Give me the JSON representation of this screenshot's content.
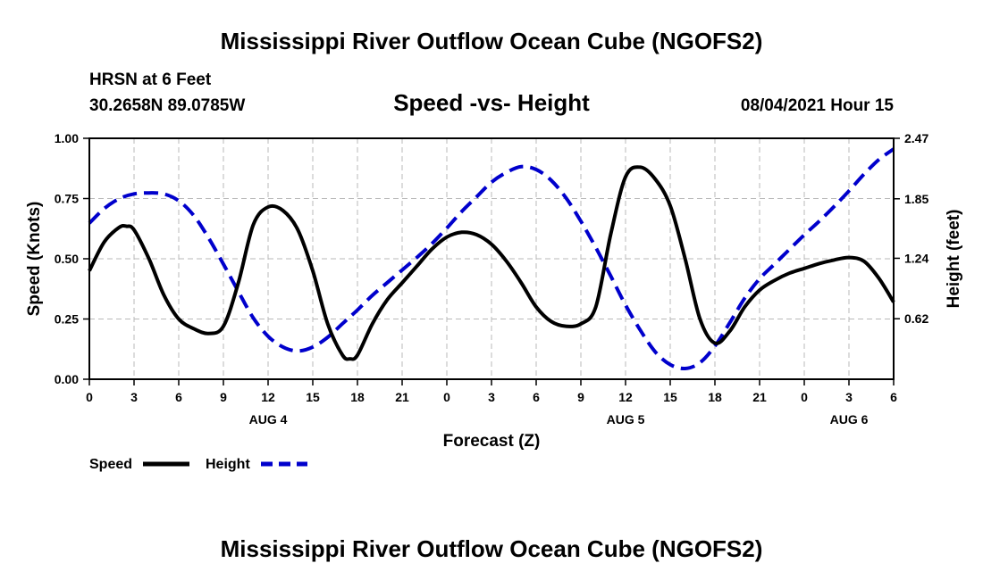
{
  "chart_data": {
    "type": "line",
    "title": "Mississippi River Outflow Ocean Cube (NGOFS2)",
    "footer_title": "Mississippi River Outflow Ocean Cube (NGOFS2)",
    "station": "HRSN at 6 Feet",
    "location": "30.2658N  89.0785W",
    "subtitle": "Speed -vs- Height",
    "timestamp": "08/04/2021 Hour 15",
    "xlabel": "Forecast (Z)",
    "ylabel_left": "Speed (Knots)",
    "ylabel_right": "Height (feet)",
    "x_range_hours": [
      0,
      54
    ],
    "ylim_left": [
      0,
      1
    ],
    "ylim_right": [
      0,
      2.47
    ],
    "x_tick_labels": [
      "0",
      "3",
      "6",
      "9",
      "12",
      "15",
      "18",
      "21",
      "0",
      "3",
      "6",
      "9",
      "12",
      "15",
      "18",
      "21",
      "0",
      "3",
      "6"
    ],
    "date_labels": [
      {
        "label": "AUG 4",
        "hour": 12
      },
      {
        "label": "AUG 5",
        "hour": 36
      },
      {
        "label": "AUG 6",
        "hour": 51
      }
    ],
    "y_left_ticks": [
      "0.00",
      "0.25",
      "0.50",
      "0.75",
      "1.00"
    ],
    "y_left_tick_values": [
      0,
      0.25,
      0.5,
      0.75,
      1.0
    ],
    "y_right_ticks": [
      "0.62",
      "1.24",
      "1.85",
      "2.47"
    ],
    "y_right_tick_values": [
      0.62,
      1.24,
      1.85,
      2.47
    ],
    "grid": true,
    "legend_position": "bottom-left",
    "series": [
      {
        "name": "Speed",
        "axis": "left",
        "color": "#000000",
        "style": "solid",
        "x": [
          0,
          1,
          2,
          2.5,
          3,
          4,
          5,
          6,
          7,
          8,
          9,
          10,
          11,
          12,
          13,
          14,
          15,
          16,
          17,
          17.5,
          18,
          19,
          20,
          21,
          22,
          23,
          24,
          25,
          26,
          27,
          28,
          29,
          30,
          31,
          32,
          33,
          34,
          35,
          36,
          37,
          38,
          39,
          40,
          41,
          42,
          43,
          44,
          45,
          46,
          47,
          48,
          49,
          50,
          51,
          52,
          53,
          54
        ],
        "values": [
          0.45,
          0.57,
          0.63,
          0.635,
          0.62,
          0.5,
          0.35,
          0.25,
          0.21,
          0.19,
          0.22,
          0.4,
          0.64,
          0.715,
          0.7,
          0.62,
          0.45,
          0.23,
          0.1,
          0.085,
          0.1,
          0.23,
          0.33,
          0.4,
          0.47,
          0.54,
          0.59,
          0.61,
          0.6,
          0.56,
          0.49,
          0.4,
          0.3,
          0.24,
          0.22,
          0.23,
          0.3,
          0.6,
          0.84,
          0.88,
          0.83,
          0.72,
          0.5,
          0.25,
          0.15,
          0.2,
          0.3,
          0.37,
          0.41,
          0.44,
          0.46,
          0.48,
          0.495,
          0.505,
          0.49,
          0.42,
          0.32
        ]
      },
      {
        "name": "Height",
        "axis": "right",
        "color": "#0000CC",
        "style": "dashed",
        "x": [
          0,
          1,
          2,
          3,
          4,
          5,
          6,
          7,
          8,
          9,
          10,
          11,
          12,
          13,
          14,
          15,
          16,
          17,
          18,
          19,
          20,
          21,
          22,
          23,
          24,
          25,
          26,
          27,
          28,
          29,
          30,
          31,
          32,
          33,
          34,
          35,
          36,
          37,
          38,
          39,
          40,
          41,
          42,
          43,
          44,
          45,
          46,
          47,
          48,
          49,
          50,
          51,
          52,
          53,
          54
        ],
        "values": [
          1.6,
          1.75,
          1.85,
          1.9,
          1.91,
          1.9,
          1.83,
          1.68,
          1.45,
          1.18,
          0.9,
          0.63,
          0.44,
          0.33,
          0.29,
          0.33,
          0.43,
          0.57,
          0.71,
          0.86,
          0.99,
          1.12,
          1.25,
          1.39,
          1.55,
          1.72,
          1.87,
          2.02,
          2.12,
          2.18,
          2.15,
          2.04,
          1.86,
          1.62,
          1.35,
          1.06,
          0.76,
          0.5,
          0.28,
          0.15,
          0.11,
          0.17,
          0.34,
          0.58,
          0.83,
          1.03,
          1.18,
          1.33,
          1.48,
          1.62,
          1.77,
          1.93,
          2.1,
          2.25,
          2.36
        ]
      }
    ]
  }
}
